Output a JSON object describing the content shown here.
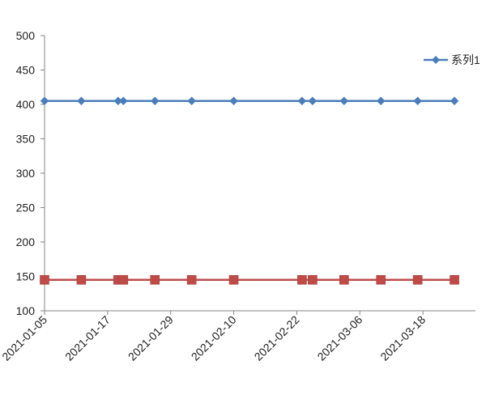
{
  "chart_data": {
    "type": "line",
    "title": "",
    "xlabel": "",
    "ylabel": "",
    "ylim": [
      100,
      500
    ],
    "y_ticks": [
      100,
      150,
      200,
      250,
      300,
      350,
      400,
      450,
      500
    ],
    "x_ticks": [
      "2021-01-05",
      "2021-01-17",
      "2021-01-29",
      "2021-02-10",
      "2021-02-22",
      "2021-03-06",
      "2021-03-18"
    ],
    "x_range": [
      "2021-01-05",
      "2021-03-28"
    ],
    "grid": false,
    "legend_position": "top-right",
    "series": [
      {
        "name": "系列1",
        "color": "#4a7ebb",
        "marker": "diamond",
        "in_legend": true,
        "x": [
          "2021-01-05",
          "2021-01-12",
          "2021-01-19",
          "2021-01-20",
          "2021-01-26",
          "2021-02-02",
          "2021-02-10",
          "2021-02-23",
          "2021-02-25",
          "2021-03-03",
          "2021-03-10",
          "2021-03-17",
          "2021-03-24"
        ],
        "values": [
          405,
          405,
          405,
          405,
          405,
          405,
          405,
          405,
          405,
          405,
          405,
          405,
          405
        ]
      },
      {
        "name": "",
        "color": "#be4b48",
        "marker": "square",
        "in_legend": false,
        "x": [
          "2021-01-05",
          "2021-01-12",
          "2021-01-19",
          "2021-01-20",
          "2021-01-26",
          "2021-02-02",
          "2021-02-10",
          "2021-02-23",
          "2021-02-25",
          "2021-03-03",
          "2021-03-10",
          "2021-03-17",
          "2021-03-24"
        ],
        "values": [
          145,
          145,
          145,
          145,
          145,
          145,
          145,
          145,
          145,
          145,
          145,
          145,
          145
        ]
      }
    ]
  }
}
